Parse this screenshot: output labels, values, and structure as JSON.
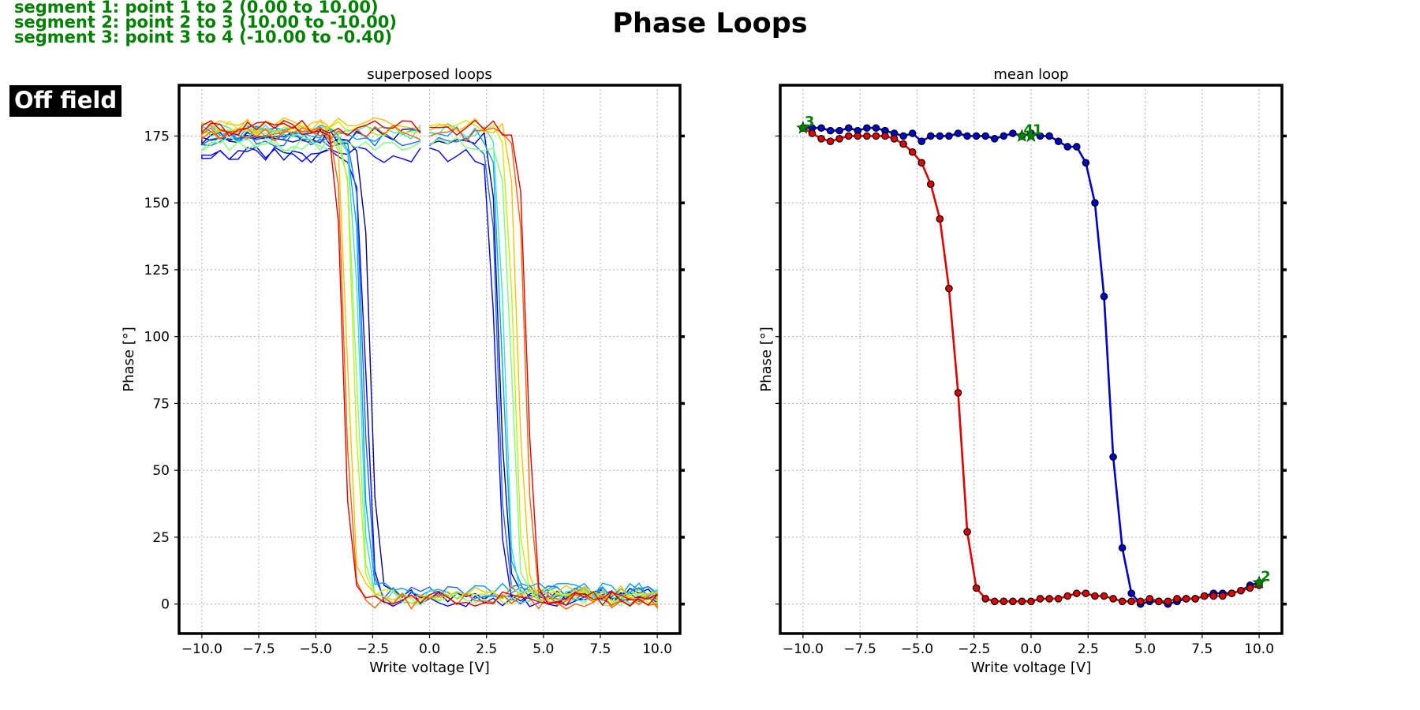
{
  "title": "Phase Loops",
  "segments": [
    "segment 1: point 1 to 2 (0.00 to 10.00)",
    "segment 2: point 2 to 3 (10.00 to -10.00)",
    "segment 3: point 3 to 4 (-10.00 to -0.40)"
  ],
  "badge": "Off field",
  "colors": {
    "segment_text": "#008000",
    "badge_bg": "#000000",
    "badge_text": "#ffffff",
    "forward": "#0000cc",
    "reverse": "#e00000",
    "marker_point": "#008000"
  },
  "chart_data": [
    {
      "type": "line",
      "title": "superposed loops",
      "xlabel": "Write voltage [V]",
      "ylabel": "Phase [°]",
      "xlim": [
        -11,
        11
      ],
      "ylim": [
        -11,
        194
      ],
      "xticks": [
        -10.0,
        -7.5,
        -5.0,
        -2.5,
        0.0,
        2.5,
        5.0,
        7.5,
        10.0
      ],
      "yticks": [
        0,
        25,
        50,
        75,
        100,
        125,
        150,
        175
      ],
      "grid": true,
      "legend": "none",
      "series": [
        {
          "color": "#00008b",
          "coercive_neg": -2.6,
          "coercive_pos": 3.1,
          "high": 175,
          "low": 3
        },
        {
          "color": "#0000ff",
          "coercive_neg": -2.8,
          "coercive_pos": 2.9,
          "high": 168,
          "low": 2
        },
        {
          "color": "#1e64ff",
          "coercive_neg": -2.9,
          "coercive_pos": 3.0,
          "high": 174,
          "low": 4
        },
        {
          "color": "#00a0ff",
          "coercive_neg": -3.0,
          "coercive_pos": 3.2,
          "high": 176,
          "low": 5
        },
        {
          "color": "#40e0d0",
          "coercive_neg": -3.1,
          "coercive_pos": 3.3,
          "high": 177,
          "low": 3
        },
        {
          "color": "#7fff7f",
          "coercive_neg": -3.2,
          "coercive_pos": 3.6,
          "high": 172,
          "low": 2
        },
        {
          "color": "#c8f000",
          "coercive_neg": -3.3,
          "coercive_pos": 3.7,
          "high": 178,
          "low": 3
        },
        {
          "color": "#ffc000",
          "coercive_neg": -3.6,
          "coercive_pos": 3.9,
          "high": 179,
          "low": 4
        },
        {
          "color": "#ff6000",
          "coercive_neg": -3.7,
          "coercive_pos": 4.2,
          "high": 176,
          "low": 1
        },
        {
          "color": "#e00000",
          "coercive_neg": -3.8,
          "coercive_pos": 4.3,
          "high": 178,
          "low": 2
        }
      ]
    },
    {
      "type": "line",
      "title": "mean loop",
      "xlabel": "Write voltage [V]",
      "ylabel": "Phase [°]",
      "xlim": [
        -11,
        11
      ],
      "ylim": [
        -11,
        194
      ],
      "xticks": [
        -10.0,
        -7.5,
        -5.0,
        -2.5,
        0.0,
        2.5,
        5.0,
        7.5,
        10.0
      ],
      "yticks": [
        0,
        25,
        50,
        75,
        100,
        125,
        150,
        175
      ],
      "ytick_labels_visible": false,
      "grid": true,
      "legend": "none",
      "series": [
        {
          "direction": "forward",
          "color": "#0000cc",
          "x": [
            -10.0,
            -9.6,
            -9.2,
            -8.8,
            -8.4,
            -8.0,
            -7.6,
            -7.2,
            -6.8,
            -6.4,
            -6.0,
            -5.6,
            -5.2,
            -4.8,
            -4.4,
            -4.0,
            -3.6,
            -3.2,
            -2.8,
            -2.4,
            -2.0,
            -1.6,
            -1.2,
            -0.8,
            -0.4,
            0.0,
            0.4,
            0.8,
            1.2,
            1.6,
            2.0,
            2.4,
            2.8,
            3.2,
            3.6,
            4.0,
            4.4,
            4.8,
            5.2,
            5.6,
            6.0,
            6.4,
            6.8,
            7.2,
            7.6,
            8.0,
            8.4,
            8.8,
            9.2,
            9.6,
            10.0
          ],
          "y": [
            178,
            178,
            178,
            177,
            177,
            178,
            177,
            178,
            178,
            177,
            176,
            175,
            176,
            173,
            175,
            175,
            175,
            176,
            175,
            175,
            175,
            174,
            175,
            176,
            175,
            176,
            175,
            175,
            173,
            171,
            171,
            165,
            150,
            115,
            55,
            21,
            4,
            0,
            1,
            1,
            0,
            1,
            2,
            2,
            3,
            4,
            4,
            4,
            5,
            7,
            8
          ]
        },
        {
          "direction": "reverse",
          "color": "#e00000",
          "x": [
            10.0,
            9.6,
            9.2,
            8.8,
            8.4,
            8.0,
            7.6,
            7.2,
            6.8,
            6.4,
            6.0,
            5.6,
            5.2,
            4.8,
            4.4,
            4.0,
            3.6,
            3.2,
            2.8,
            2.4,
            2.0,
            1.6,
            1.2,
            0.8,
            0.4,
            0.0,
            -0.4,
            -0.8,
            -1.2,
            -1.6,
            -2.0,
            -2.4,
            -2.8,
            -3.2,
            -3.6,
            -4.0,
            -4.4,
            -4.8,
            -5.2,
            -5.6,
            -6.0,
            -6.4,
            -6.8,
            -7.2,
            -7.6,
            -8.0,
            -8.4,
            -8.8,
            -9.2,
            -9.6,
            -10.0
          ],
          "y": [
            7,
            6,
            5,
            4,
            3,
            3,
            3,
            2,
            2,
            2,
            1,
            1,
            2,
            1,
            1,
            1,
            2,
            3,
            3,
            4,
            4,
            3,
            2,
            2,
            2,
            1,
            1,
            1,
            1,
            1,
            2,
            6,
            27,
            79,
            118,
            144,
            157,
            165,
            169,
            172,
            174,
            175,
            175,
            175,
            175,
            175,
            174,
            173,
            174,
            176,
            178
          ]
        }
      ],
      "annotations": [
        {
          "label": "1",
          "x": 0.0,
          "y": 175
        },
        {
          "label": "2",
          "x": 10.0,
          "y": 8
        },
        {
          "label": "3",
          "x": -10.0,
          "y": 178
        },
        {
          "label": "4",
          "x": -0.4,
          "y": 175
        }
      ]
    }
  ]
}
